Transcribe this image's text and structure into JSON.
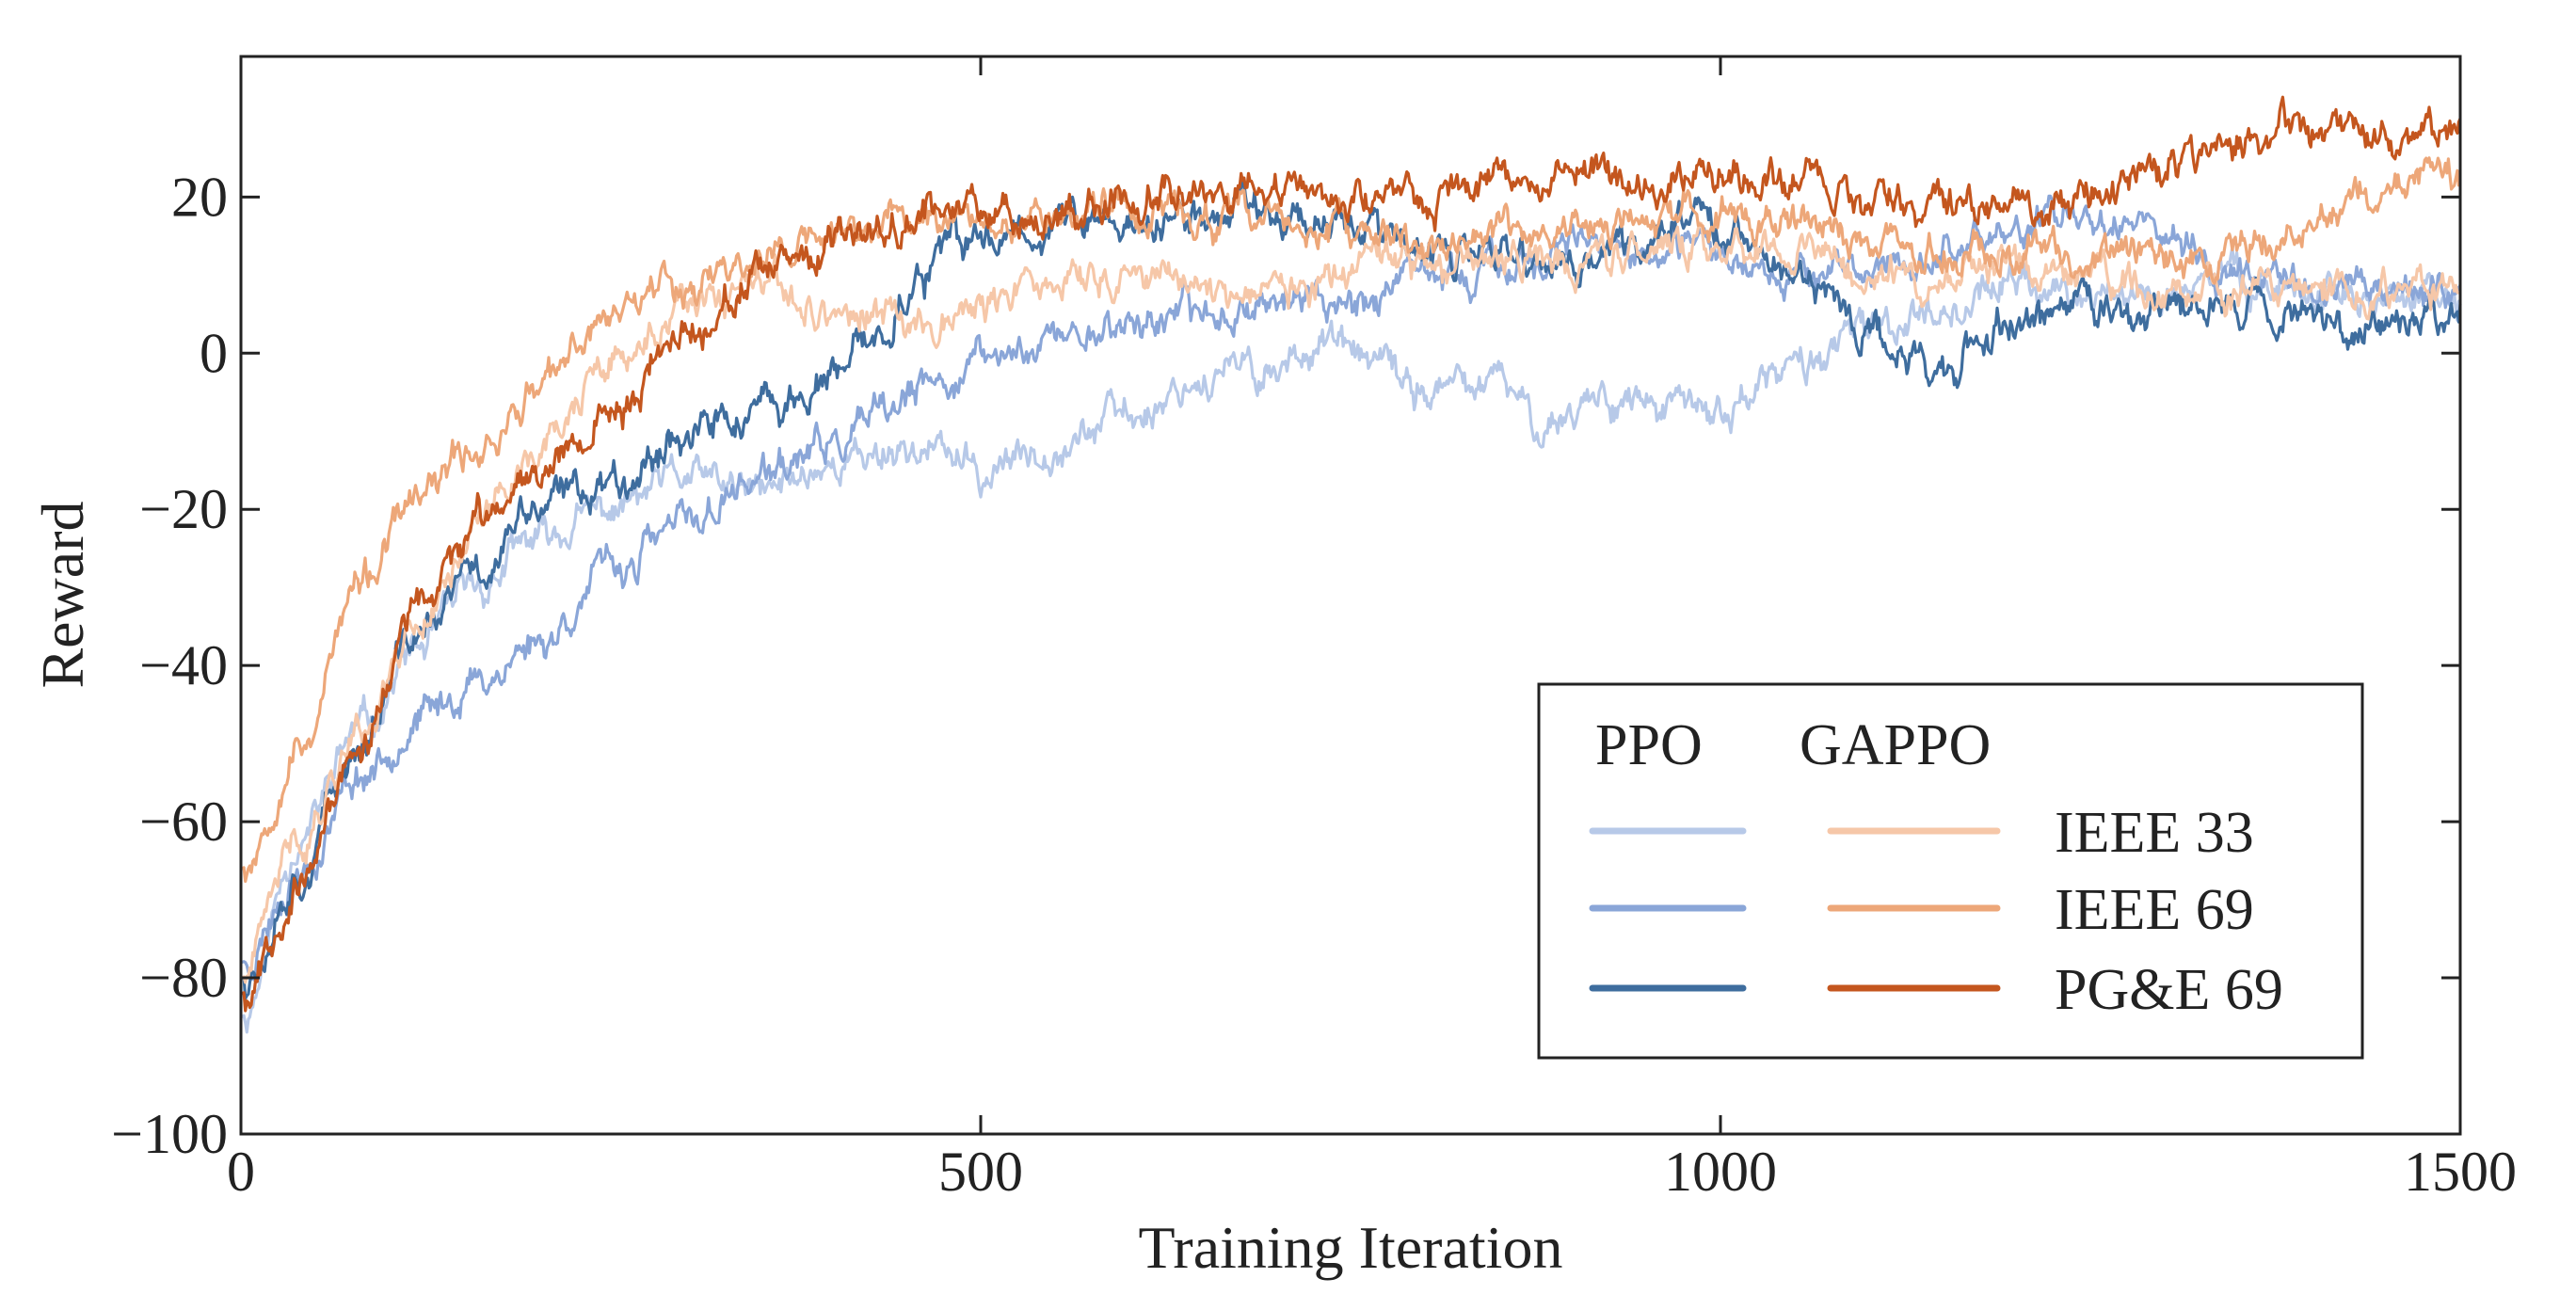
{
  "chart_data": {
    "type": "line",
    "title": "",
    "xlabel": "Training Iteration",
    "ylabel": "Reward",
    "xlim": [
      0,
      1500
    ],
    "ylim": [
      -100,
      38
    ],
    "xticks": [
      0,
      500,
      1000,
      1500
    ],
    "xtick_labels": [
      "0",
      "500",
      "1000",
      "1500"
    ],
    "yticks": [
      -100,
      -80,
      -60,
      -40,
      -20,
      0,
      20
    ],
    "ytick_labels": [
      "−100",
      "−80",
      "−60",
      "−40",
      "−20",
      "0",
      "20"
    ],
    "grid": false,
    "legend": {
      "placement": "lower-right",
      "col_headers": [
        "PPO",
        "GAPPO"
      ],
      "rows": [
        "IEEE 33",
        "IEEE 69",
        "PG&E 69"
      ]
    },
    "series": [
      {
        "name": "PPO IEEE 33",
        "group": "PPO",
        "case": "IEEE 33",
        "color": "#b7c9e8",
        "noise": 1.3,
        "seed": 11,
        "points": [
          [
            0,
            -85
          ],
          [
            40,
            -62
          ],
          [
            80,
            -48
          ],
          [
            120,
            -38
          ],
          [
            160,
            -30
          ],
          [
            200,
            -24
          ],
          [
            250,
            -20
          ],
          [
            300,
            -16
          ],
          [
            350,
            -18
          ],
          [
            400,
            -14
          ],
          [
            450,
            -12
          ],
          [
            480,
            -13
          ],
          [
            500,
            -16
          ],
          [
            520,
            -14
          ],
          [
            550,
            -11
          ],
          [
            600,
            -8
          ],
          [
            650,
            -3
          ],
          [
            700,
            -2
          ],
          [
            730,
            2
          ],
          [
            760,
            -1
          ],
          [
            800,
            -5
          ],
          [
            850,
            -4
          ],
          [
            880,
            -9
          ],
          [
            920,
            -5
          ],
          [
            960,
            -7
          ],
          [
            1000,
            -8
          ],
          [
            1020,
            -5
          ],
          [
            1050,
            -2
          ],
          [
            1080,
            1
          ],
          [
            1100,
            3
          ],
          [
            1150,
            6
          ],
          [
            1200,
            9
          ],
          [
            1250,
            7
          ],
          [
            1300,
            8
          ],
          [
            1350,
            10
          ],
          [
            1400,
            8
          ],
          [
            1450,
            7
          ],
          [
            1500,
            6
          ]
        ]
      },
      {
        "name": "PPO IEEE 69",
        "group": "PPO",
        "case": "IEEE 69",
        "color": "#8aa6d8",
        "noise": 1.3,
        "seed": 23,
        "points": [
          [
            0,
            -78
          ],
          [
            40,
            -66
          ],
          [
            80,
            -54
          ],
          [
            120,
            -47
          ],
          [
            160,
            -42
          ],
          [
            200,
            -37
          ],
          [
            250,
            -28
          ],
          [
            300,
            -22
          ],
          [
            350,
            -16
          ],
          [
            400,
            -12
          ],
          [
            430,
            -9
          ],
          [
            460,
            -5
          ],
          [
            500,
            -1
          ],
          [
            550,
            2
          ],
          [
            600,
            4
          ],
          [
            650,
            5
          ],
          [
            700,
            7
          ],
          [
            750,
            7
          ],
          [
            800,
            9
          ],
          [
            850,
            11
          ],
          [
            900,
            13
          ],
          [
            950,
            12
          ],
          [
            1000,
            13
          ],
          [
            1050,
            11
          ],
          [
            1100,
            10
          ],
          [
            1150,
            13
          ],
          [
            1200,
            16
          ],
          [
            1250,
            18
          ],
          [
            1280,
            18
          ],
          [
            1300,
            15
          ],
          [
            1350,
            10
          ],
          [
            1400,
            9
          ],
          [
            1450,
            9
          ],
          [
            1500,
            8
          ]
        ]
      },
      {
        "name": "PPO PG&E 69",
        "group": "PPO",
        "case": "PG&E 69",
        "color": "#3e6d9e",
        "noise": 1.4,
        "seed": 37,
        "points": [
          [
            0,
            -80
          ],
          [
            40,
            -66
          ],
          [
            80,
            -50
          ],
          [
            120,
            -36
          ],
          [
            160,
            -28
          ],
          [
            200,
            -20
          ],
          [
            250,
            -16
          ],
          [
            300,
            -10
          ],
          [
            350,
            -8
          ],
          [
            400,
            -4
          ],
          [
            430,
            2
          ],
          [
            450,
            8
          ],
          [
            480,
            13
          ],
          [
            520,
            16
          ],
          [
            560,
            17
          ],
          [
            600,
            16
          ],
          [
            650,
            17
          ],
          [
            680,
            20
          ],
          [
            700,
            18
          ],
          [
            750,
            17
          ],
          [
            800,
            12
          ],
          [
            850,
            12
          ],
          [
            900,
            11
          ],
          [
            930,
            13
          ],
          [
            960,
            15
          ],
          [
            980,
            20
          ],
          [
            1000,
            16
          ],
          [
            1050,
            10
          ],
          [
            1080,
            6
          ],
          [
            1100,
            2
          ],
          [
            1150,
            -2
          ],
          [
            1200,
            4
          ],
          [
            1250,
            6
          ],
          [
            1300,
            5
          ],
          [
            1350,
            7
          ],
          [
            1400,
            5
          ],
          [
            1450,
            4
          ],
          [
            1500,
            6
          ]
        ]
      },
      {
        "name": "GAPPO IEEE 33",
        "group": "GAPPO",
        "case": "IEEE 33",
        "color": "#f6c7a8",
        "noise": 1.3,
        "seed": 41,
        "points": [
          [
            0,
            -80
          ],
          [
            40,
            -62
          ],
          [
            80,
            -48
          ],
          [
            120,
            -34
          ],
          [
            160,
            -22
          ],
          [
            200,
            -12
          ],
          [
            250,
            -2
          ],
          [
            300,
            5
          ],
          [
            350,
            8
          ],
          [
            400,
            5
          ],
          [
            450,
            4
          ],
          [
            500,
            6
          ],
          [
            550,
            9
          ],
          [
            600,
            10
          ],
          [
            650,
            9
          ],
          [
            700,
            8
          ],
          [
            750,
            10
          ],
          [
            800,
            11
          ],
          [
            850,
            11
          ],
          [
            900,
            12
          ],
          [
            950,
            13
          ],
          [
            1000,
            14
          ],
          [
            1050,
            13
          ],
          [
            1100,
            11
          ],
          [
            1150,
            9
          ],
          [
            1200,
            10
          ],
          [
            1250,
            10
          ],
          [
            1300,
            8
          ],
          [
            1350,
            7
          ],
          [
            1400,
            8
          ],
          [
            1450,
            8
          ],
          [
            1500,
            8
          ]
        ]
      },
      {
        "name": "GAPPO IEEE 69",
        "group": "GAPPO",
        "case": "IEEE 69",
        "color": "#eda779",
        "noise": 1.3,
        "seed": 53,
        "points": [
          [
            0,
            -66
          ],
          [
            40,
            -50
          ],
          [
            80,
            -30
          ],
          [
            120,
            -19
          ],
          [
            160,
            -12
          ],
          [
            200,
            -5
          ],
          [
            250,
            5
          ],
          [
            280,
            10
          ],
          [
            300,
            9
          ],
          [
            350,
            12
          ],
          [
            400,
            15
          ],
          [
            450,
            17
          ],
          [
            500,
            18
          ],
          [
            550,
            18
          ],
          [
            600,
            19
          ],
          [
            650,
            17
          ],
          [
            700,
            17
          ],
          [
            750,
            15
          ],
          [
            800,
            14
          ],
          [
            850,
            15
          ],
          [
            900,
            16
          ],
          [
            950,
            16
          ],
          [
            1000,
            18
          ],
          [
            1050,
            17
          ],
          [
            1100,
            14
          ],
          [
            1150,
            13
          ],
          [
            1200,
            13
          ],
          [
            1250,
            12
          ],
          [
            1300,
            12
          ],
          [
            1350,
            13
          ],
          [
            1400,
            17
          ],
          [
            1450,
            21
          ],
          [
            1480,
            24
          ],
          [
            1500,
            21
          ]
        ]
      },
      {
        "name": "GAPPO PG&E 69",
        "group": "GAPPO",
        "case": "PG&E 69",
        "color": "#c4561e",
        "noise": 1.3,
        "seed": 67,
        "points": [
          [
            0,
            -82
          ],
          [
            40,
            -68
          ],
          [
            80,
            -50
          ],
          [
            120,
            -33
          ],
          [
            160,
            -22
          ],
          [
            200,
            -14
          ],
          [
            250,
            -8
          ],
          [
            300,
            3
          ],
          [
            350,
            9
          ],
          [
            400,
            13
          ],
          [
            450,
            18
          ],
          [
            500,
            19
          ],
          [
            550,
            18
          ],
          [
            600,
            20
          ],
          [
            650,
            22
          ],
          [
            700,
            21
          ],
          [
            750,
            19
          ],
          [
            800,
            20
          ],
          [
            850,
            22
          ],
          [
            900,
            24
          ],
          [
            950,
            21
          ],
          [
            1000,
            23
          ],
          [
            1050,
            23
          ],
          [
            1100,
            20
          ],
          [
            1150,
            19
          ],
          [
            1200,
            18
          ],
          [
            1250,
            20
          ],
          [
            1300,
            24
          ],
          [
            1350,
            27
          ],
          [
            1400,
            29
          ],
          [
            1450,
            28
          ],
          [
            1480,
            29
          ],
          [
            1500,
            28
          ]
        ]
      }
    ]
  }
}
